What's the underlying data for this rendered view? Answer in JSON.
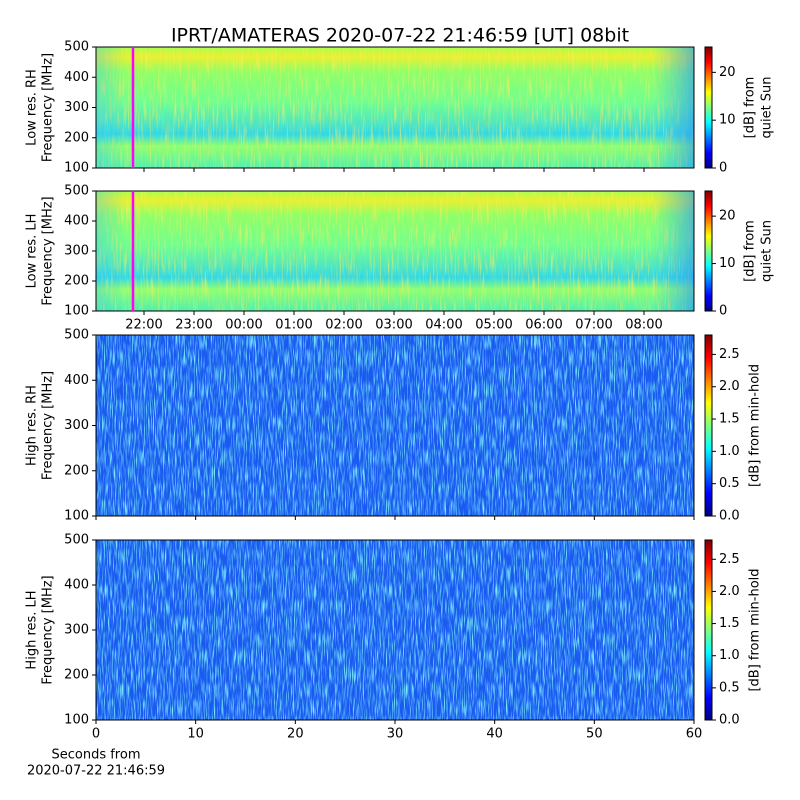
{
  "title": "IPRT/AMATERAS 2020-07-22 21:46:59 [UT]   08bit",
  "chart_data": [
    {
      "type": "heatmap",
      "ylabel": [
        "Low res. RH",
        "Frequency [MHz]"
      ],
      "ylim": [
        100,
        500
      ],
      "yticks": [
        100,
        200,
        300,
        400,
        500
      ],
      "xlim": [
        21.04,
        33.0
      ],
      "xticks": [
        {
          "value": 22,
          "label": "22:00"
        },
        {
          "value": 23,
          "label": "23:00"
        },
        {
          "value": 24,
          "label": "00:00"
        },
        {
          "value": 25,
          "label": "01:00"
        },
        {
          "value": 26,
          "label": "02:00"
        },
        {
          "value": 27,
          "label": "03:00"
        },
        {
          "value": 28,
          "label": "04:00"
        },
        {
          "value": 29,
          "label": "05:00"
        },
        {
          "value": 30,
          "label": "06:00"
        },
        {
          "value": 31,
          "label": "07:00"
        },
        {
          "value": 32,
          "label": "08:00"
        }
      ],
      "show_xtick_labels": false,
      "style": "low",
      "marker": {
        "x": 21.78,
        "color": "#ff00ff"
      },
      "colorbar": {
        "label": [
          "[dB] from",
          "quiet Sun"
        ],
        "lim": [
          0,
          25.3
        ],
        "ticks": [
          0,
          10,
          20
        ],
        "colormap": "jet"
      }
    },
    {
      "type": "heatmap",
      "ylabel": [
        "Low res. LH",
        "Frequency [MHz]"
      ],
      "ylim": [
        100,
        500
      ],
      "yticks": [
        100,
        200,
        300,
        400,
        500
      ],
      "xlim": [
        21.04,
        33.0
      ],
      "xticks": [
        {
          "value": 22,
          "label": "22:00"
        },
        {
          "value": 23,
          "label": "23:00"
        },
        {
          "value": 24,
          "label": "00:00"
        },
        {
          "value": 25,
          "label": "01:00"
        },
        {
          "value": 26,
          "label": "02:00"
        },
        {
          "value": 27,
          "label": "03:00"
        },
        {
          "value": 28,
          "label": "04:00"
        },
        {
          "value": 29,
          "label": "05:00"
        },
        {
          "value": 30,
          "label": "06:00"
        },
        {
          "value": 31,
          "label": "07:00"
        },
        {
          "value": 32,
          "label": "08:00"
        }
      ],
      "show_xtick_labels": true,
      "style": "low",
      "marker": {
        "x": 21.78,
        "color": "#ff00ff"
      },
      "colorbar": {
        "label": [
          "[dB] from",
          "quiet Sun"
        ],
        "lim": [
          0,
          25.3
        ],
        "ticks": [
          0,
          10,
          20
        ],
        "colormap": "jet"
      }
    },
    {
      "type": "heatmap",
      "ylabel": [
        "High res. RH",
        "Frequency [MHz]"
      ],
      "ylim": [
        100,
        500
      ],
      "yticks": [
        100,
        200,
        300,
        400,
        500
      ],
      "xlim": [
        0,
        60
      ],
      "xticks": [
        0,
        10,
        20,
        30,
        40,
        50,
        60
      ],
      "show_xtick_labels": false,
      "style": "high",
      "colorbar": {
        "label": [
          "[dB] from min-hold"
        ],
        "lim": [
          0,
          2.8
        ],
        "ticks": [
          {
            "value": 0,
            "label": "0.0"
          },
          {
            "value": 0.5,
            "label": "0.5"
          },
          {
            "value": 1,
            "label": "1.0"
          },
          {
            "value": 1.5,
            "label": "1.5"
          },
          {
            "value": 2,
            "label": "2.0"
          },
          {
            "value": 2.5,
            "label": "2.5"
          }
        ],
        "colormap": "jet"
      }
    },
    {
      "type": "heatmap",
      "ylabel": [
        "High res. LH",
        "Frequency [MHz]"
      ],
      "ylim": [
        100,
        500
      ],
      "yticks": [
        100,
        200,
        300,
        400,
        500
      ],
      "xlim": [
        0,
        60
      ],
      "xticks": [
        0,
        10,
        20,
        30,
        40,
        50,
        60
      ],
      "show_xtick_labels": true,
      "style": "high",
      "xlabel": [
        "Seconds from",
        "2020-07-22 21:46:59"
      ],
      "colorbar": {
        "label": [
          "[dB] from min-hold"
        ],
        "lim": [
          0,
          2.8
        ],
        "ticks": [
          {
            "value": 0,
            "label": "0.0"
          },
          {
            "value": 0.5,
            "label": "0.5"
          },
          {
            "value": 1,
            "label": "1.0"
          },
          {
            "value": 1.5,
            "label": "1.5"
          },
          {
            "value": 2,
            "label": "2.0"
          },
          {
            "value": 2.5,
            "label": "2.5"
          }
        ],
        "colormap": "jet"
      }
    }
  ]
}
